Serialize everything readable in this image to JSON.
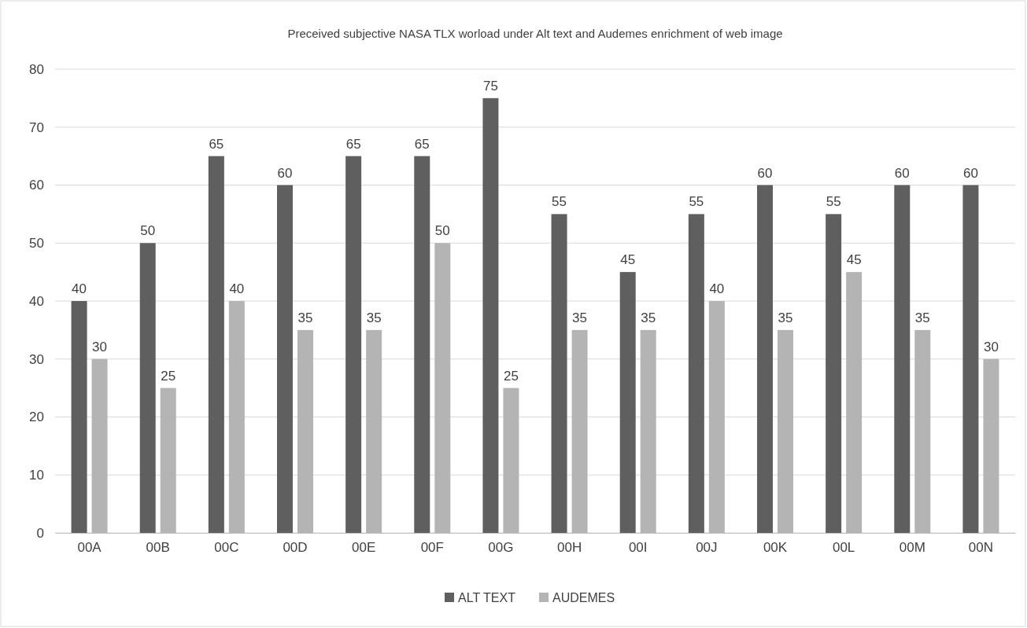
{
  "chart_data": {
    "type": "bar",
    "title": "Preceived subjective NASA TLX worload under Alt text and Audemes enrichment of web image",
    "categories": [
      "00A",
      "00B",
      "00C",
      "00D",
      "00E",
      "00F",
      "00G",
      "00H",
      "00I",
      "00J",
      "00K",
      "00L",
      "00M",
      "00N"
    ],
    "series": [
      {
        "name": "ALT TEXT",
        "color": "#5f5f5f",
        "values": [
          40,
          50,
          65,
          60,
          65,
          65,
          75,
          55,
          45,
          55,
          60,
          55,
          60,
          60
        ]
      },
      {
        "name": "AUDEMES",
        "color": "#b4b4b4",
        "values": [
          30,
          25,
          40,
          35,
          35,
          50,
          25,
          35,
          35,
          40,
          35,
          45,
          35,
          30
        ]
      }
    ],
    "ylim": [
      0,
      80
    ],
    "yticks": [
      0,
      10,
      20,
      30,
      40,
      50,
      60,
      70,
      80
    ],
    "grid": "y",
    "legend": "bottom",
    "data_labels": true
  }
}
